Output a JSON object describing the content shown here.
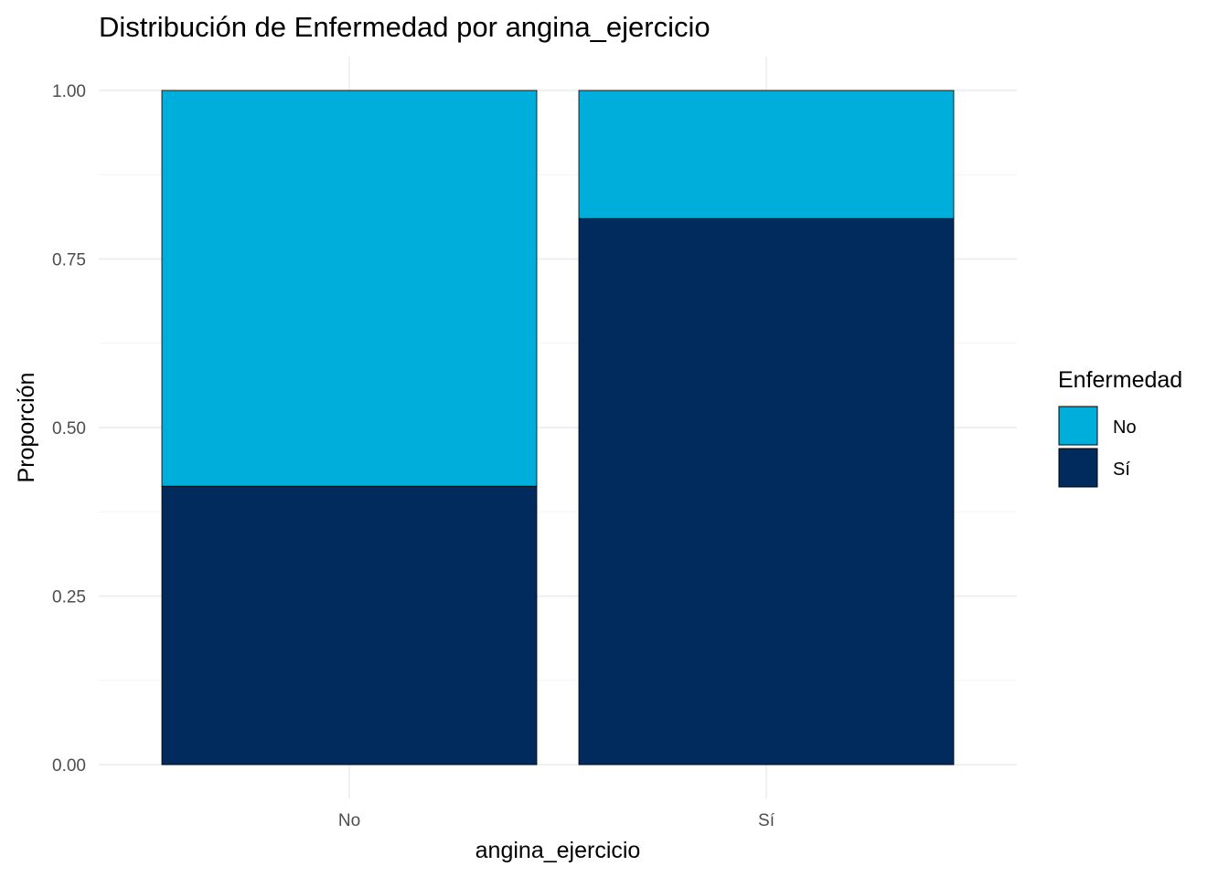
{
  "chart_data": {
    "type": "bar",
    "stacked": true,
    "title": "Distribución de Enfermedad por angina_ejercicio",
    "xlabel": "angina_ejercicio",
    "ylabel": "Proporción",
    "categories": [
      "No",
      "Sí"
    ],
    "ylim": [
      0,
      1
    ],
    "yticks": [
      "0.00",
      "0.25",
      "0.50",
      "0.75",
      "1.00"
    ],
    "series": [
      {
        "name": "Sí",
        "color": "#002b5c",
        "values": [
          0.413,
          0.81
        ]
      },
      {
        "name": "No",
        "color": "#00aedb",
        "values": [
          0.587,
          0.19
        ]
      }
    ],
    "legend": {
      "title": "Enfermedad",
      "placement": "right",
      "items": [
        {
          "label": "No",
          "color": "#00aedb"
        },
        {
          "label": "Sí",
          "color": "#002b5c"
        }
      ]
    },
    "grid": true
  }
}
